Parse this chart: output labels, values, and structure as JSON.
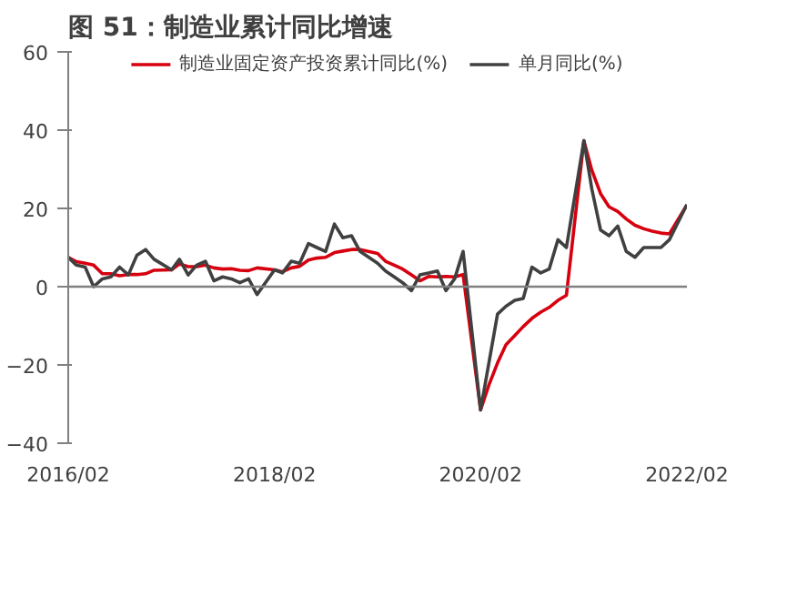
{
  "chart_data": {
    "type": "line",
    "title": "图 51：制造业累计同比增速",
    "xlim": [
      "2016-02",
      "2022-02"
    ],
    "xticks": [
      {
        "value": "2016-02",
        "label": "2016/02"
      },
      {
        "value": "2018-02",
        "label": "2018/02"
      },
      {
        "value": "2020-02",
        "label": "2020/02"
      },
      {
        "value": "2022-02",
        "label": "2022/02"
      }
    ],
    "ylim": [
      -40,
      60
    ],
    "yticks": [
      -40,
      -20,
      0,
      20,
      40,
      60
    ],
    "grid": false,
    "legend": "top",
    "line_style": "solid",
    "marker": "none",
    "ref_lines": [
      {
        "axis": "y",
        "value": 0,
        "color": "#808080"
      }
    ],
    "series": [
      {
        "name": "制造业固定资产投资累计同比(%)",
        "color": "#d7000f",
        "x": [
          "2016-02",
          "2016-03",
          "2016-04",
          "2016-05",
          "2016-06",
          "2016-07",
          "2016-08",
          "2016-09",
          "2016-10",
          "2016-11",
          "2016-12",
          "2017-02",
          "2017-03",
          "2017-04",
          "2017-05",
          "2017-06",
          "2017-07",
          "2017-08",
          "2017-09",
          "2017-10",
          "2017-11",
          "2017-12",
          "2018-02",
          "2018-03",
          "2018-04",
          "2018-05",
          "2018-06",
          "2018-07",
          "2018-08",
          "2018-09",
          "2018-10",
          "2018-11",
          "2018-12",
          "2019-02",
          "2019-03",
          "2019-04",
          "2019-05",
          "2019-06",
          "2019-07",
          "2019-08",
          "2019-09",
          "2019-10",
          "2019-11",
          "2019-12",
          "2020-02",
          "2020-03",
          "2020-04",
          "2020-05",
          "2020-06",
          "2020-07",
          "2020-08",
          "2020-09",
          "2020-10",
          "2020-11",
          "2020-12",
          "2021-02",
          "2021-03",
          "2021-04",
          "2021-05",
          "2021-06",
          "2021-07",
          "2021-08",
          "2021-09",
          "2021-10",
          "2021-11",
          "2021-12",
          "2022-02"
        ],
        "values": [
          7.5,
          6.4,
          6.0,
          5.5,
          3.3,
          3.3,
          2.8,
          3.1,
          3.1,
          3.3,
          4.2,
          4.3,
          5.8,
          5.1,
          5.1,
          5.5,
          4.8,
          4.5,
          4.6,
          4.2,
          4.1,
          4.8,
          4.3,
          3.8,
          4.8,
          5.2,
          6.8,
          7.3,
          7.5,
          8.7,
          9.1,
          9.5,
          9.5,
          8.5,
          6.5,
          5.5,
          4.5,
          3.0,
          1.5,
          2.6,
          2.5,
          2.6,
          2.5,
          3.1,
          -31.5,
          -25.2,
          -19.5,
          -14.8,
          -12.5,
          -10.2,
          -8.1,
          -6.5,
          -5.3,
          -3.5,
          -2.2,
          37.3,
          29.8,
          23.8,
          20.4,
          19.2,
          17.3,
          15.7,
          14.8,
          14.2,
          13.7,
          13.5,
          20.9
        ]
      },
      {
        "name": "单月同比(%)",
        "color": "#404040",
        "x": [
          "2016-02",
          "2016-03",
          "2016-04",
          "2016-05",
          "2016-06",
          "2016-07",
          "2016-08",
          "2016-09",
          "2016-10",
          "2016-11",
          "2016-12",
          "2017-02",
          "2017-03",
          "2017-04",
          "2017-05",
          "2017-06",
          "2017-07",
          "2017-08",
          "2017-09",
          "2017-10",
          "2017-11",
          "2017-12",
          "2018-02",
          "2018-03",
          "2018-04",
          "2018-05",
          "2018-06",
          "2018-07",
          "2018-08",
          "2018-09",
          "2018-10",
          "2018-11",
          "2018-12",
          "2019-02",
          "2019-03",
          "2019-04",
          "2019-05",
          "2019-06",
          "2019-07",
          "2019-08",
          "2019-09",
          "2019-10",
          "2019-11",
          "2019-12",
          "2020-02",
          "2020-04",
          "2020-05",
          "2020-06",
          "2020-07",
          "2020-08",
          "2020-09",
          "2020-10",
          "2020-11",
          "2020-12",
          "2021-02",
          "2021-03",
          "2021-04",
          "2021-05",
          "2021-06",
          "2021-07",
          "2021-08",
          "2021-09",
          "2021-10",
          "2021-11",
          "2021-12",
          "2022-02"
        ],
        "values": [
          7.5,
          5.5,
          5.0,
          0.0,
          2.0,
          2.5,
          5.0,
          3.0,
          8.0,
          9.5,
          7.0,
          4.3,
          7.0,
          3.0,
          5.5,
          6.5,
          1.5,
          2.5,
          2.0,
          1.0,
          2.0,
          -2.0,
          4.3,
          3.5,
          6.5,
          6.0,
          11.0,
          10.0,
          9.0,
          16.0,
          12.5,
          13.0,
          9.0,
          6.0,
          4.0,
          2.5,
          1.0,
          -1.0,
          3.0,
          3.5,
          4.0,
          -1.0,
          2.0,
          9.0,
          -31.5,
          -7.0,
          -5.0,
          -3.5,
          -3.0,
          5.0,
          3.5,
          4.5,
          12.0,
          10.0,
          37.3,
          25.0,
          14.5,
          13.0,
          15.5,
          9.0,
          7.5,
          10.0,
          10.0,
          10.0,
          12.0,
          21.0
        ]
      }
    ]
  }
}
